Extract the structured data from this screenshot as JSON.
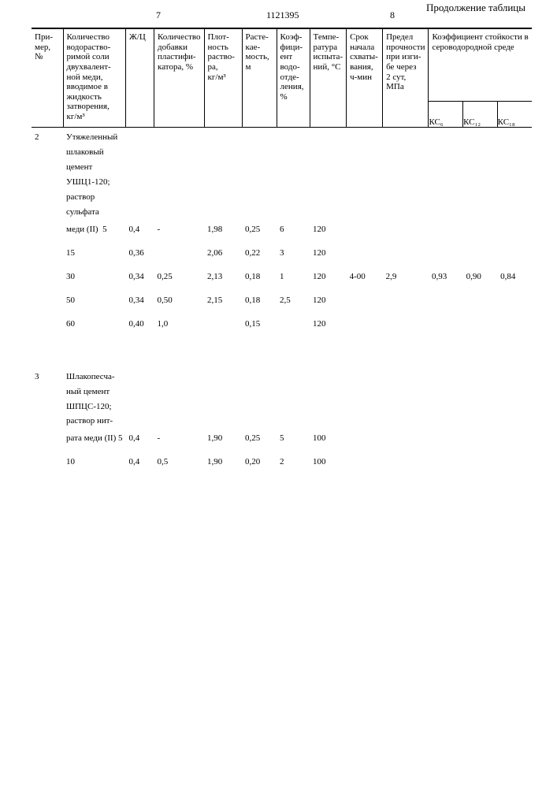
{
  "pageLeft": "7",
  "docNum": "1121395",
  "pageRight": "8",
  "continuation": "Продолжение таблицы",
  "headers": {
    "c1": "При-\nмер,\n№",
    "c2": "Количество\nводораство-\nримой соли\nдвухвалент-\nной меди,\nвводимое в\nжидкость\nзатворения,\nкг/м³",
    "c3": "Ж/Ц",
    "c4": "Количество\nдобавки\nпластифи-\nкатора, %",
    "c5": "Плот-\nность\nраство-\nра,\nкг/м³",
    "c6": "Расте-\nкае-\nмость,\nм",
    "c7": "Коэф-\nфици-\nент\nводо-\nотде-\nления,\n%",
    "c8": "Темпе-\nратура\nиспыта-\nний, °С",
    "c9": "Срок\nначала\nсхваты-\nвания,\nч-мин",
    "c10": "Предел\nпрочности\nпри изги-\nбе через\n2 сут,\nМПа",
    "kcGroup": "Коэффициент стойкости в\nсероводородной среде",
    "kc6": "КС₆",
    "kc12": "КС₁₂",
    "kc18": "КС₁₈"
  },
  "block2": {
    "primer": "2",
    "descLines": [
      "Утяжеленный",
      "шлаковый",
      "цемент",
      "УШЦ1-120;",
      "раствор",
      "сульфата",
      "меди (II)"
    ],
    "rows": [
      {
        "qty": "5",
        "zhc": "0,4",
        "plast": "-",
        "dens": "1,98",
        "flow": "0,25",
        "sep": "6",
        "temp": "120",
        "set": "",
        "str": "",
        "kc6": "",
        "kc12": "",
        "kc18": ""
      },
      {
        "qty": "15",
        "zhc": "0,36",
        "plast": "",
        "dens": "2,06",
        "flow": "0,22",
        "sep": "3",
        "temp": "120",
        "set": "",
        "str": "",
        "kc6": "",
        "kc12": "",
        "kc18": ""
      },
      {
        "qty": "30",
        "zhc": "0,34",
        "plast": "0,25",
        "dens": "2,13",
        "flow": "0,18",
        "sep": "1",
        "temp": "120",
        "set": "4-00",
        "str": "2,9",
        "kc6": "0,93",
        "kc12": "0,90",
        "kc18": "0,84"
      },
      {
        "qty": "50",
        "zhc": "0,34",
        "plast": "0,50",
        "dens": "2,15",
        "flow": "0,18",
        "sep": "2,5",
        "temp": "120",
        "set": "",
        "str": "",
        "kc6": "",
        "kc12": "",
        "kc18": ""
      },
      {
        "qty": "60",
        "zhc": "0,40",
        "plast": "1,0",
        "dens": "",
        "flow": "0,15",
        "sep": "",
        "temp": "120",
        "set": "",
        "str": "",
        "kc6": "",
        "kc12": "",
        "kc18": ""
      }
    ]
  },
  "block3": {
    "primer": "3",
    "descLines": [
      "Шлакопесча-",
      "ный цемент",
      "ШПЦС-120;",
      "раствор нит-",
      "рата меди (II)"
    ],
    "rows": [
      {
        "qty": "5",
        "zhc": "0,4",
        "plast": "-",
        "dens": "1,90",
        "flow": "0,25",
        "sep": "5",
        "temp": "100",
        "set": "",
        "str": "",
        "kc6": "",
        "kc12": "",
        "kc18": ""
      },
      {
        "qty": "10",
        "zhc": "0,4",
        "plast": "0,5",
        "dens": "1,90",
        "flow": "0,20",
        "sep": "2",
        "temp": "100",
        "set": "",
        "str": "",
        "kc6": "",
        "kc12": "",
        "kc18": ""
      }
    ]
  }
}
